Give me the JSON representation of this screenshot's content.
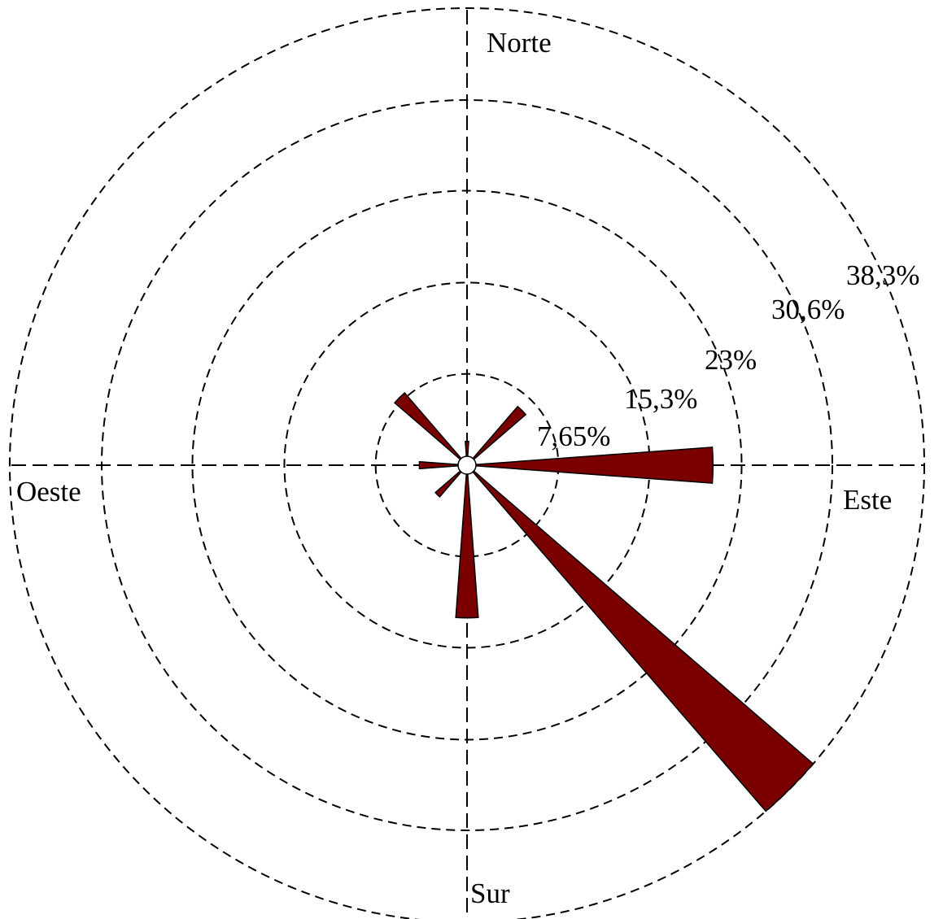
{
  "chart_data": {
    "type": "polar-bar",
    "title": "",
    "directions": {
      "north": "Norte",
      "east": "Este",
      "south": "Sur",
      "west": "Oeste"
    },
    "ring_labels": [
      "7,65%",
      "15,3%",
      "23%",
      "30,6%",
      "38,3%"
    ],
    "ring_values": [
      7.65,
      15.3,
      23,
      30.6,
      38.3
    ],
    "rmax": 38.3,
    "grid": true,
    "petals": [
      {
        "direction_deg": 0,
        "value": 2.0
      },
      {
        "direction_deg": 45,
        "value": 6.5
      },
      {
        "direction_deg": 90,
        "value": 20.6
      },
      {
        "direction_deg": 135,
        "value": 38.3
      },
      {
        "direction_deg": 180,
        "value": 12.8
      },
      {
        "direction_deg": 225,
        "value": 3.5
      },
      {
        "direction_deg": 270,
        "value": 4.0
      },
      {
        "direction_deg": 315,
        "value": 8.0
      }
    ],
    "bar_color": "#7a0000"
  }
}
